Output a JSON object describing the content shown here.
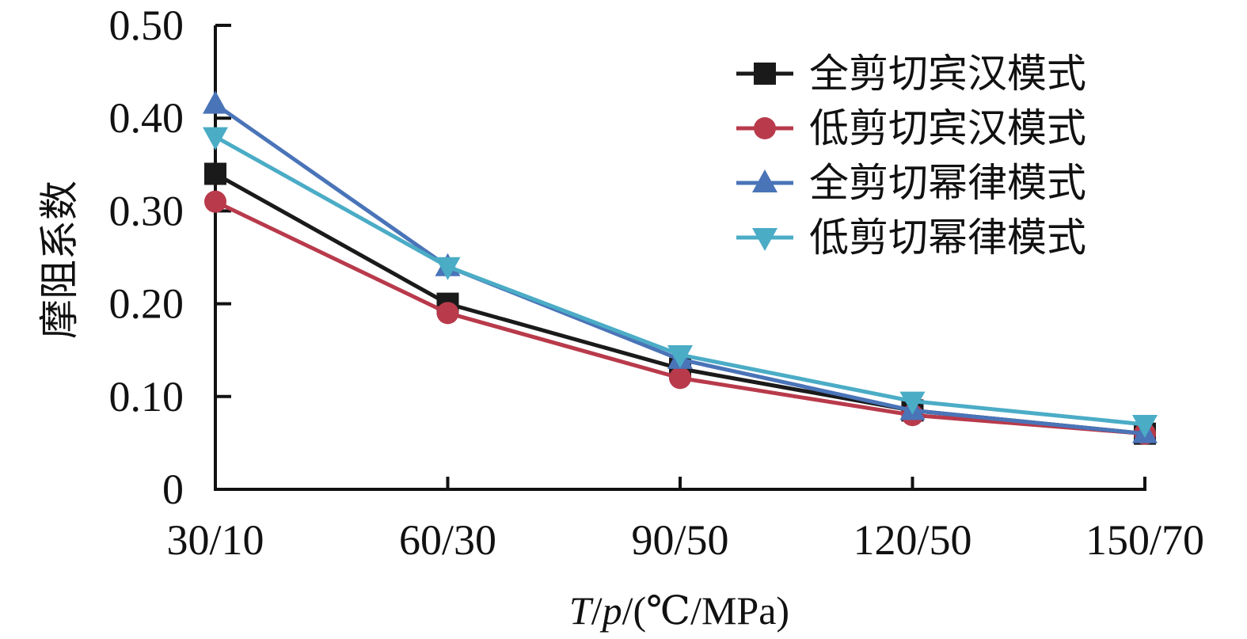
{
  "chart_data": {
    "type": "line",
    "categories": [
      "30/10",
      "60/30",
      "90/50",
      "120/50",
      "150/70"
    ],
    "ylabel": "摩阻系数",
    "xlabel": {
      "var1": "T",
      "sep1": "/",
      "var2": "p",
      "unit": "/(℃/MPa)"
    },
    "ylim": [
      0,
      0.5
    ],
    "yticks": [
      0,
      0.1,
      0.2,
      0.3,
      0.4,
      0.5
    ],
    "ytick_labels": [
      "0",
      "0.10",
      "0.20",
      "0.30",
      "0.40",
      "0.50"
    ],
    "grid": false,
    "legend_position": "top-right",
    "series": [
      {
        "name": "全剪切宾汉模式",
        "color": "#1a1a1a",
        "marker": "square",
        "values": [
          0.34,
          0.2,
          0.13,
          0.085,
          0.06
        ]
      },
      {
        "name": "低剪切宾汉模式",
        "color": "#b83a4b",
        "marker": "circle",
        "values": [
          0.31,
          0.19,
          0.12,
          0.08,
          0.06
        ]
      },
      {
        "name": "全剪切幂律模式",
        "color": "#4a74b8",
        "marker": "triangle-up",
        "values": [
          0.415,
          0.24,
          0.14,
          0.085,
          0.06
        ]
      },
      {
        "name": "低剪切幂律模式",
        "color": "#4bacc6",
        "marker": "triangle-down",
        "values": [
          0.38,
          0.24,
          0.145,
          0.095,
          0.07
        ]
      }
    ]
  }
}
